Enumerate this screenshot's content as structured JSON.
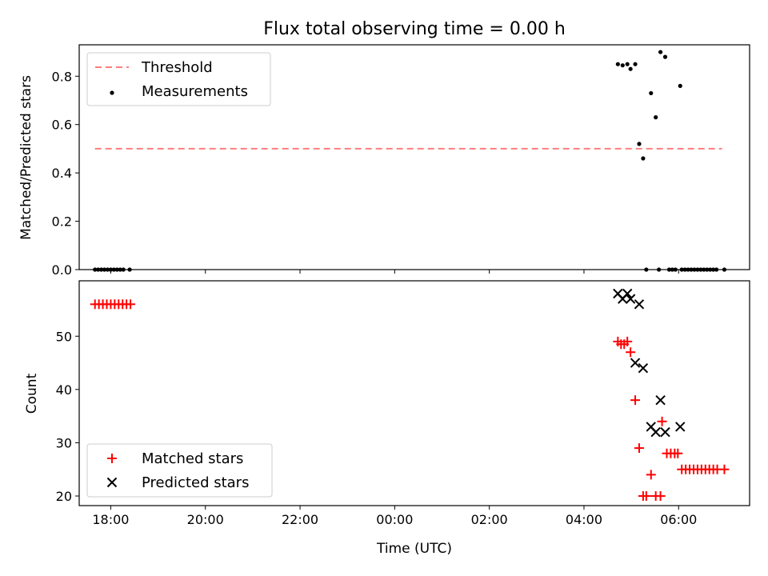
{
  "figure": {
    "title": "Flux total observing time = 0.00 h",
    "xlabel": "Time (UTC)"
  },
  "chart_data": [
    {
      "type": "scatter",
      "ylabel": "Matched/Predicted stars",
      "xlim": [
        "17:20",
        "07:30"
      ],
      "ylim": [
        0,
        0.93
      ],
      "yticks": [
        0.0,
        0.2,
        0.4,
        0.6,
        0.8
      ],
      "yticklabels": [
        "0.0",
        "0.2",
        "0.4",
        "0.6",
        "0.8"
      ],
      "threshold": {
        "name": "Threshold",
        "value": 0.5,
        "x_start": "17:40",
        "x_end": "06:55",
        "color": "#ff7f7f"
      },
      "legend_position": "top-left",
      "series": [
        {
          "name": "Measurements",
          "marker": "dot",
          "color": "#000000",
          "points": [
            [
              "17:40",
              0
            ],
            [
              "17:44",
              0
            ],
            [
              "17:48",
              0
            ],
            [
              "17:52",
              0
            ],
            [
              "17:56",
              0
            ],
            [
              "18:00",
              0
            ],
            [
              "18:04",
              0
            ],
            [
              "18:08",
              0
            ],
            [
              "18:12",
              0
            ],
            [
              "18:16",
              0
            ],
            [
              "18:24",
              0
            ],
            [
              "04:43",
              0.85
            ],
            [
              "04:49",
              0.845
            ],
            [
              "04:55",
              0.85
            ],
            [
              "04:59",
              0.83
            ],
            [
              "05:05",
              0.85
            ],
            [
              "05:10",
              0.52
            ],
            [
              "05:15",
              0.46
            ],
            [
              "05:19",
              0
            ],
            [
              "05:25",
              0.73
            ],
            [
              "05:31",
              0.63
            ],
            [
              "05:35",
              0
            ],
            [
              "05:37",
              0.9
            ],
            [
              "05:43",
              0.88
            ],
            [
              "05:48",
              0
            ],
            [
              "05:52",
              0
            ],
            [
              "05:56",
              0
            ],
            [
              "06:02",
              0.76
            ],
            [
              "06:04",
              0
            ],
            [
              "06:08",
              0
            ],
            [
              "06:12",
              0
            ],
            [
              "06:16",
              0
            ],
            [
              "06:20",
              0
            ],
            [
              "06:24",
              0
            ],
            [
              "06:28",
              0
            ],
            [
              "06:32",
              0
            ],
            [
              "06:36",
              0
            ],
            [
              "06:40",
              0
            ],
            [
              "06:44",
              0
            ],
            [
              "06:48",
              0
            ],
            [
              "06:58",
              0
            ]
          ]
        }
      ]
    },
    {
      "type": "scatter",
      "ylabel": "Count",
      "xlim": [
        "17:20",
        "07:30"
      ],
      "ylim": [
        18.2,
        60.4
      ],
      "yticks": [
        20,
        30,
        40,
        50
      ],
      "yticklabels": [
        "20",
        "30",
        "40",
        "50"
      ],
      "xticks": [
        "18:00",
        "20:00",
        "22:00",
        "00:00",
        "02:00",
        "04:00",
        "06:00"
      ],
      "legend_position": "bottom-left",
      "series": [
        {
          "name": "Matched stars",
          "marker": "plus",
          "color": "#ff0000",
          "points": [
            [
              "17:40",
              56
            ],
            [
              "17:45",
              56
            ],
            [
              "17:50",
              56
            ],
            [
              "17:55",
              56
            ],
            [
              "18:00",
              56
            ],
            [
              "18:05",
              56
            ],
            [
              "18:10",
              56
            ],
            [
              "18:15",
              56
            ],
            [
              "18:20",
              56
            ],
            [
              "18:25",
              56
            ],
            [
              "04:43",
              49
            ],
            [
              "04:47",
              48.5
            ],
            [
              "04:51",
              48.5
            ],
            [
              "04:55",
              49
            ],
            [
              "04:59",
              47
            ],
            [
              "05:05",
              38
            ],
            [
              "05:10",
              29
            ],
            [
              "05:15",
              20
            ],
            [
              "05:19",
              20
            ],
            [
              "05:25",
              24
            ],
            [
              "05:31",
              20
            ],
            [
              "05:37",
              20
            ],
            [
              "05:39",
              34
            ],
            [
              "05:45",
              28
            ],
            [
              "05:50",
              28
            ],
            [
              "05:55",
              28
            ],
            [
              "05:59",
              28
            ],
            [
              "06:04",
              25
            ],
            [
              "06:09",
              25
            ],
            [
              "06:14",
              25
            ],
            [
              "06:19",
              25
            ],
            [
              "06:24",
              25
            ],
            [
              "06:29",
              25
            ],
            [
              "06:34",
              25
            ],
            [
              "06:39",
              25
            ],
            [
              "06:44",
              25
            ],
            [
              "06:49",
              25
            ],
            [
              "06:58",
              25
            ]
          ]
        },
        {
          "name": "Predicted stars",
          "marker": "x",
          "color": "#000000",
          "points": [
            [
              "04:43",
              58
            ],
            [
              "04:49",
              57
            ],
            [
              "04:55",
              58
            ],
            [
              "04:59",
              57
            ],
            [
              "05:05",
              45
            ],
            [
              "05:10",
              56
            ],
            [
              "05:15",
              44
            ],
            [
              "05:25",
              33
            ],
            [
              "05:31",
              32
            ],
            [
              "05:37",
              38
            ],
            [
              "05:43",
              32
            ],
            [
              "06:02",
              33
            ]
          ]
        }
      ]
    }
  ]
}
